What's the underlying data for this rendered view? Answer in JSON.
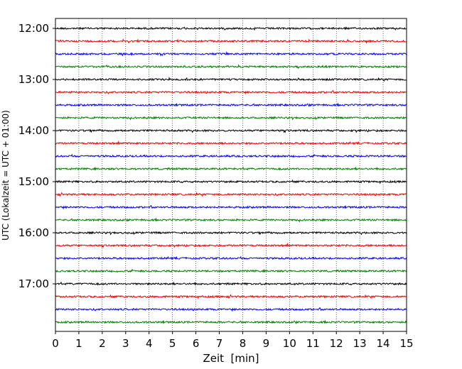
{
  "chart_data": {
    "type": "line",
    "title": "",
    "xlabel": "Zeit  [min]",
    "ylabel": "UTC (Lokalzeit = UTC + 01:00)",
    "xlim": [
      0,
      15
    ],
    "x_ticks": [
      "0",
      "1",
      "2",
      "3",
      "4",
      "5",
      "6",
      "7",
      "8",
      "9",
      "10",
      "11",
      "12",
      "13",
      "14",
      "15"
    ],
    "y_ticks": [
      {
        "label": "12:00",
        "row": 0
      },
      {
        "label": "13:00",
        "row": 4
      },
      {
        "label": "14:00",
        "row": 8
      },
      {
        "label": "15:00",
        "row": 12
      },
      {
        "label": "16:00",
        "row": 16
      },
      {
        "label": "17:00",
        "row": 20
      }
    ],
    "trace_interval_minutes": 15,
    "trace_count": 24,
    "trace_colors": [
      "#000000",
      "#ff0000",
      "#0000ff",
      "#008000"
    ],
    "grid": {
      "x": true,
      "y": false
    },
    "legend": "none"
  }
}
